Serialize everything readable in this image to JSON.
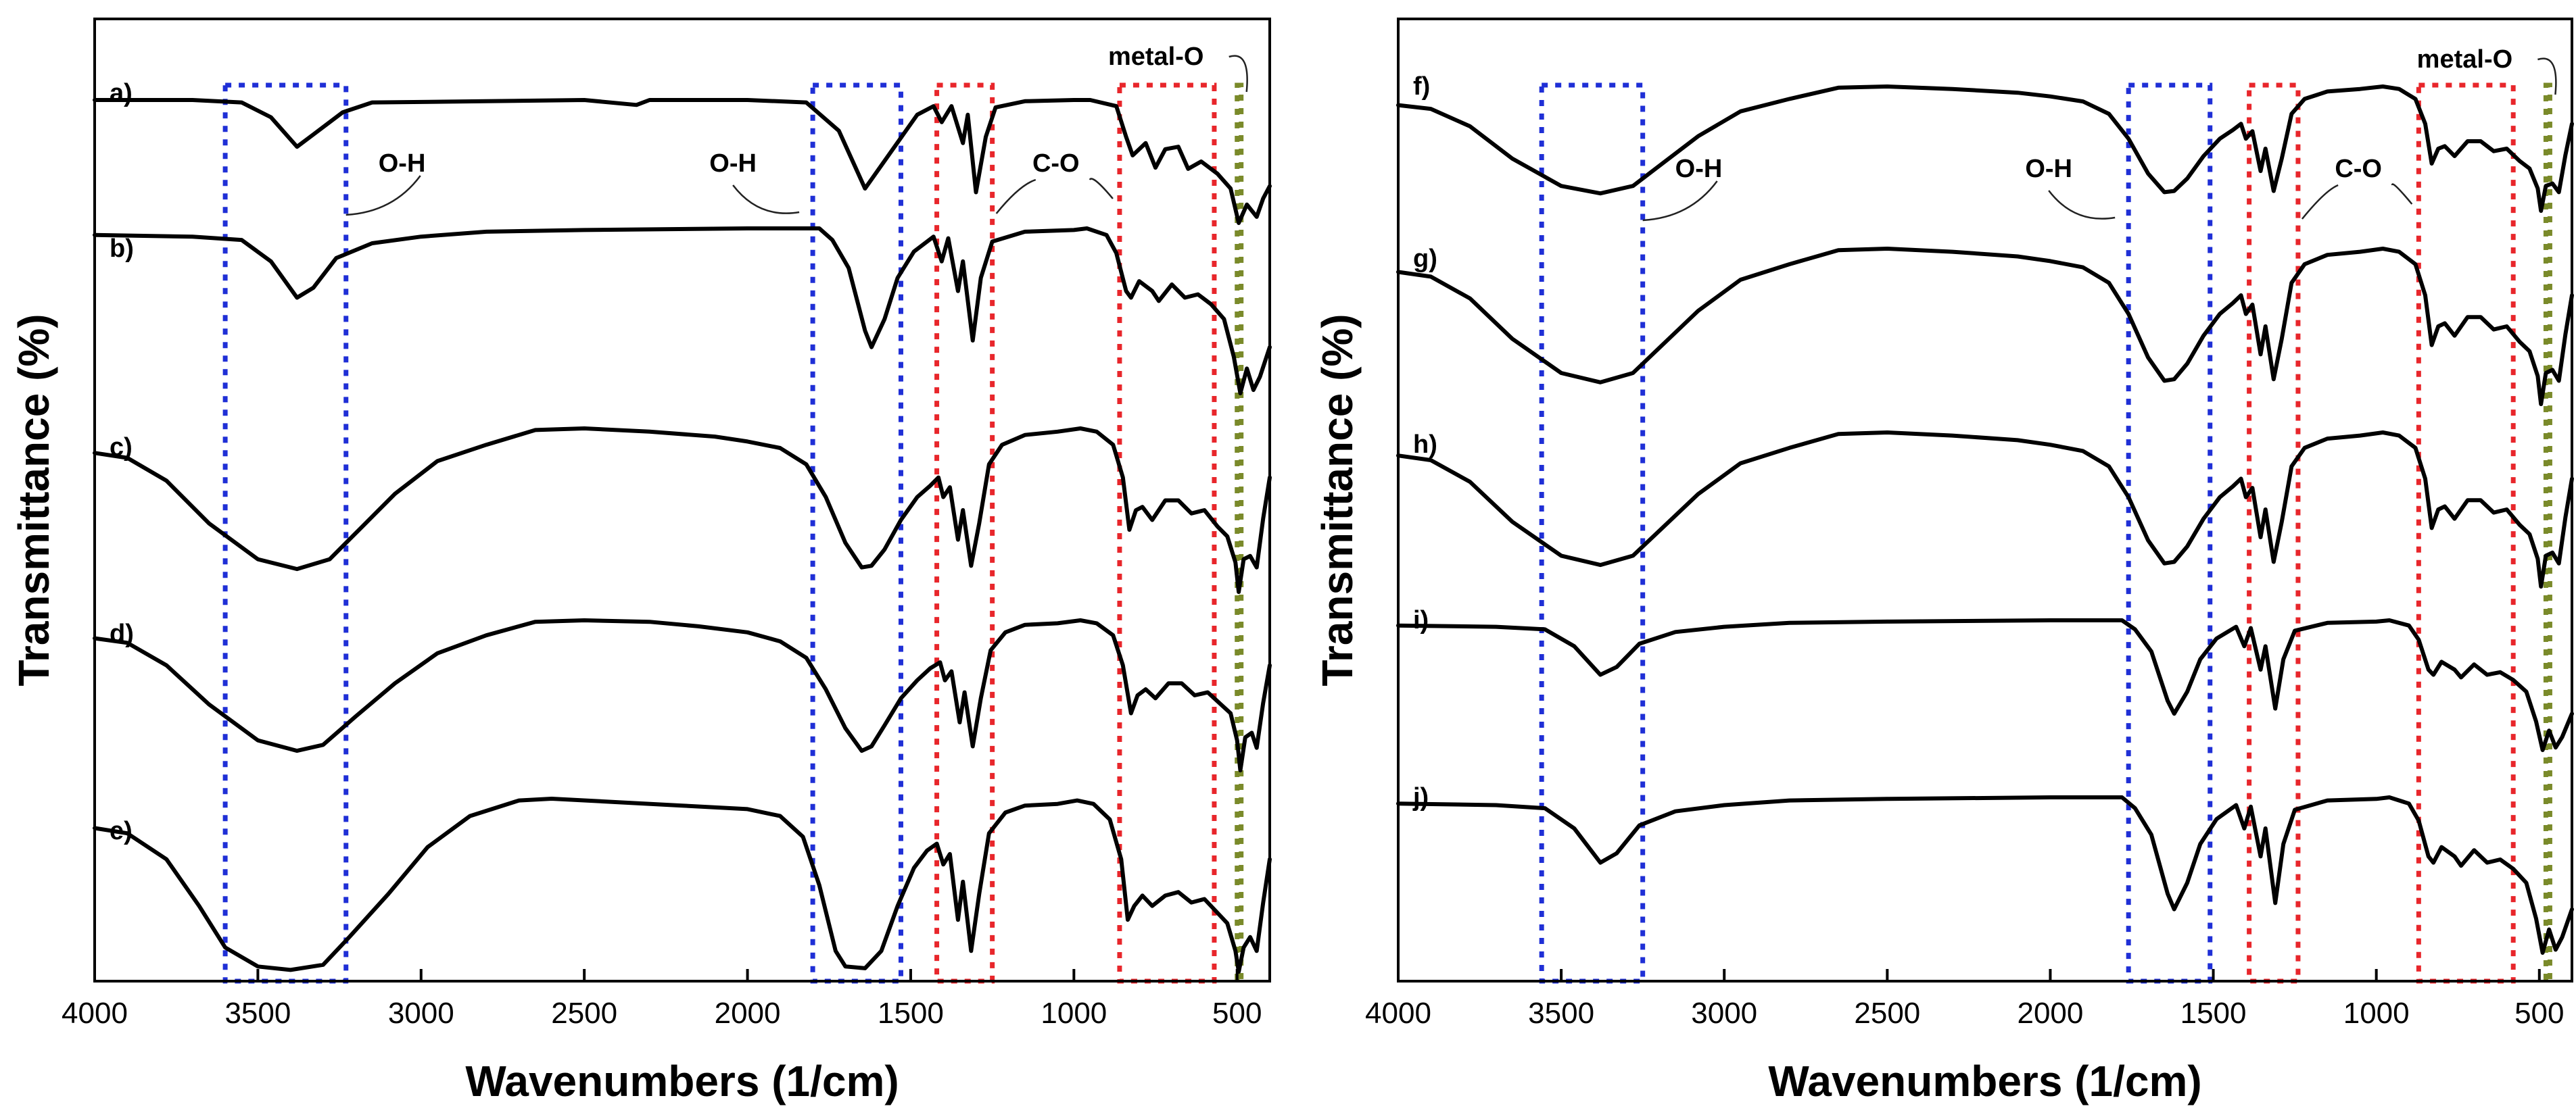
{
  "chart_data": [
    {
      "type": "line",
      "panel": "left",
      "title": "",
      "xlabel": "Wavenumbers (1/cm)",
      "ylabel": "Transmittance (%)",
      "xlim": [
        4000,
        400
      ],
      "xticks": [
        4000,
        3500,
        3000,
        2500,
        2000,
        1500,
        1000,
        500
      ],
      "x_reversed": true,
      "grid": false,
      "series": [
        {
          "name": "a)",
          "shape": "a"
        },
        {
          "name": "b)",
          "shape": "b"
        },
        {
          "name": "c)",
          "shape": "c"
        },
        {
          "name": "d)",
          "shape": "d"
        },
        {
          "name": "e)",
          "shape": "e"
        }
      ],
      "regions": [
        {
          "from": 3600,
          "to": 3230,
          "color": "#1f2fd6",
          "group": "O-H"
        },
        {
          "from": 1800,
          "to": 1530,
          "color": "#1f2fd6",
          "group": "O-H"
        },
        {
          "from": 1420,
          "to": 1250,
          "color": "#e8262b",
          "group": "C-O"
        },
        {
          "from": 860,
          "to": 570,
          "color": "#e8262b",
          "group": "C-O"
        },
        {
          "from": 500,
          "to": 490,
          "color": "#7a8a2a",
          "group": "metal-O"
        }
      ],
      "annotations": [
        "O-H",
        "O-H",
        "C-O",
        "metal-O"
      ]
    },
    {
      "type": "line",
      "panel": "right",
      "title": "",
      "xlabel": "Wavenumbers (1/cm)",
      "ylabel": "Transmittance (%)",
      "xlim": [
        4000,
        400
      ],
      "xticks": [
        4000,
        3500,
        3000,
        2500,
        2000,
        1500,
        1000,
        500
      ],
      "x_reversed": true,
      "grid": false,
      "series": [
        {
          "name": "f)",
          "shape": "c"
        },
        {
          "name": "g)",
          "shape": "c"
        },
        {
          "name": "h)",
          "shape": "c"
        },
        {
          "name": "i)",
          "shape": "b"
        },
        {
          "name": "j)",
          "shape": "b"
        }
      ],
      "regions": [
        {
          "from": 3560,
          "to": 3250,
          "color": "#1f2fd6",
          "group": "O-H"
        },
        {
          "from": 1760,
          "to": 1510,
          "color": "#1f2fd6",
          "group": "O-H"
        },
        {
          "from": 1390,
          "to": 1240,
          "color": "#e8262b",
          "group": "C-O"
        },
        {
          "from": 870,
          "to": 580,
          "color": "#e8262b",
          "group": "C-O"
        },
        {
          "from": 480,
          "to": 470,
          "color": "#7a8a2a",
          "group": "metal-O"
        }
      ],
      "annotations": [
        "O-H",
        "O-H",
        "C-O",
        "metal-O"
      ]
    }
  ],
  "colors": {
    "oh_region": "#1f2fd6",
    "co_region": "#e8262b",
    "metal_region": "#7a8a2a",
    "line": "#000000"
  }
}
